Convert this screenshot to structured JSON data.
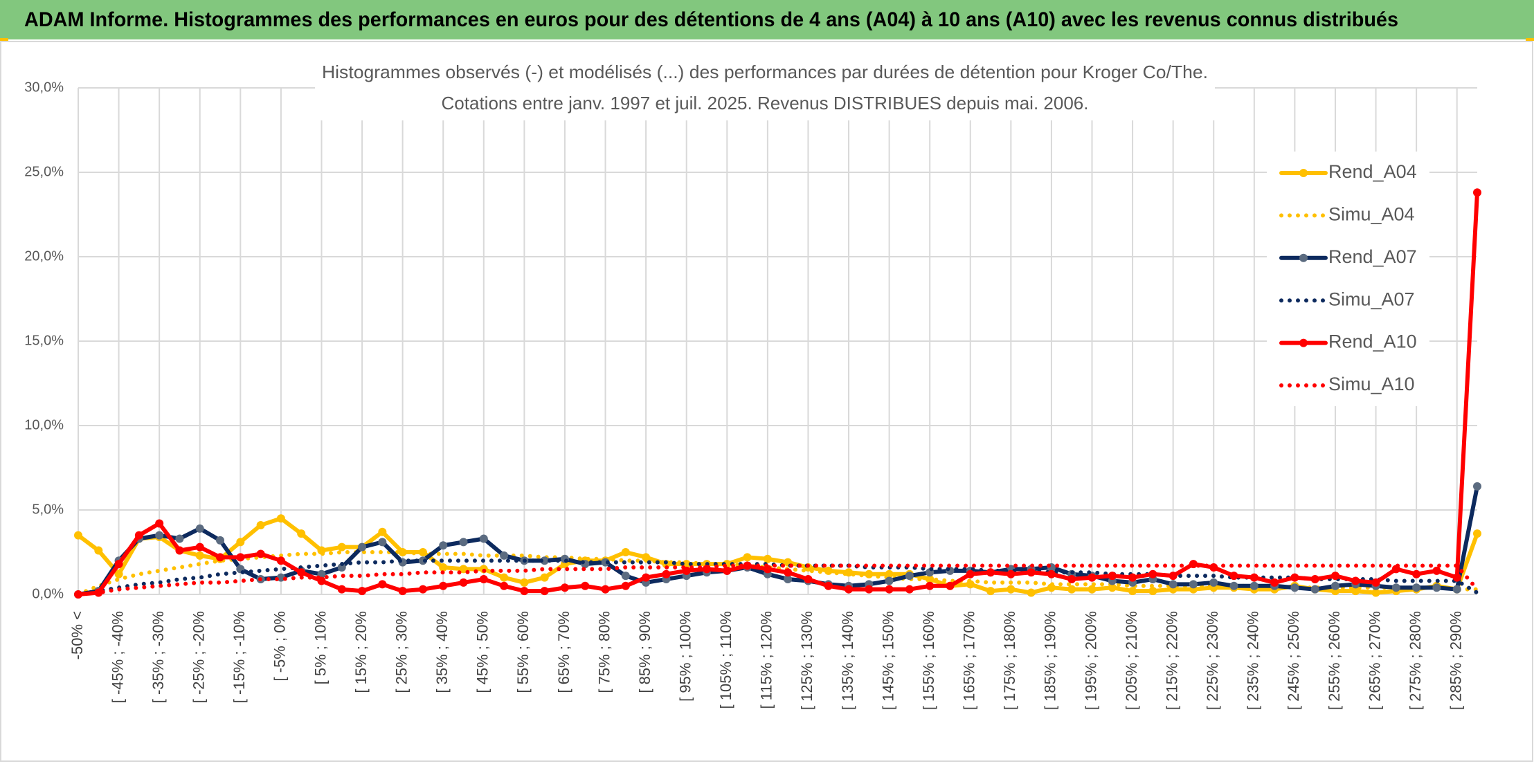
{
  "chart_data": {
    "type": "line",
    "title": "ADAM Informe. Histogrammes des performances en euros pour des détentions de 4 ans (A04) à 10 ans (A10) avec les revenus connus distribués",
    "subtitle": [
      "Histogrammes observés (-) et modélisés (...) des performances par durées de détention pour Kroger Co/The.",
      "Cotations entre janv. 1997 et juil. 2025. Revenus DISTRIBUES depuis mai. 2006."
    ],
    "categories": [
      "-50% <",
      null,
      "[ -45% ; -40%",
      null,
      "[ -35% ; -30%",
      null,
      "[ -25% ; -20%",
      null,
      "[ -15% ; -10%",
      null,
      "[ -5% ; 0%",
      null,
      "[ 5% ; 10%",
      null,
      "[ 15% ; 20%",
      null,
      "[ 25% ; 30%",
      null,
      "[ 35% ; 40%",
      null,
      "[ 45% ; 50%",
      null,
      "[ 55% ; 60%",
      null,
      "[ 65% ; 70%",
      null,
      "[ 75% ; 80%",
      null,
      "[ 85% ; 90%",
      null,
      "[ 95% ; 100%",
      null,
      "[ 105% ; 110%",
      null,
      "[ 115% ; 120%",
      null,
      "[ 125% ; 130%",
      null,
      "[ 135% ; 140%",
      null,
      "[ 145% ; 150%",
      null,
      "[ 155% ; 160%",
      null,
      "[ 165% ; 170%",
      null,
      "[ 175% ; 180%",
      null,
      "[ 185% ; 190%",
      null,
      "[ 195% ; 200%",
      null,
      "[ 205% ; 210%",
      null,
      "[ 215% ; 220%",
      null,
      "[ 225% ; 230%",
      null,
      "[ 235% ; 240%",
      null,
      "[ 245% ; 250%",
      null,
      "[ 255% ; 260%",
      null,
      "[ 265% ; 270%",
      null,
      "[ 275% ; 280%",
      null,
      "[ 285% ; 290%",
      null
    ],
    "series": [
      {
        "name": "Rend_A04",
        "color": "#ffc000",
        "marker_color": "#ffc000",
        "line_style": "solid",
        "markers": true,
        "values": [
          3.5,
          2.6,
          1.2,
          3.3,
          3.4,
          2.6,
          2.3,
          2.1,
          3.1,
          4.1,
          4.5,
          3.6,
          2.6,
          2.8,
          2.8,
          3.7,
          2.5,
          2.5,
          1.6,
          1.5,
          1.5,
          1.0,
          0.7,
          1.0,
          1.8,
          2.0,
          2.0,
          2.5,
          2.2,
          1.8,
          1.8,
          1.8,
          1.8,
          2.2,
          2.1,
          1.9,
          1.6,
          1.4,
          1.3,
          1.2,
          1.2,
          1.2,
          0.9,
          0.5,
          0.6,
          0.2,
          0.3,
          0.1,
          0.4,
          0.3,
          0.3,
          0.4,
          0.2,
          0.2,
          0.3,
          0.3,
          0.4,
          0.4,
          0.3,
          0.3,
          0.5,
          0.3,
          0.2,
          0.2,
          0.1,
          0.2,
          0.3,
          0.5,
          0.3,
          3.6
        ]
      },
      {
        "name": "Simu_A04",
        "color": "#ffc000",
        "line_style": "dotted",
        "markers": false,
        "values": [
          0,
          0.5,
          0.9,
          1.2,
          1.4,
          1.6,
          1.8,
          2.0,
          2.1,
          2.2,
          2.3,
          2.4,
          2.4,
          2.5,
          2.5,
          2.5,
          2.5,
          2.4,
          2.4,
          2.4,
          2.3,
          2.3,
          2.3,
          2.2,
          2.2,
          2.1,
          2.1,
          2.0,
          2.0,
          1.9,
          1.9,
          1.8,
          1.8,
          1.7,
          1.6,
          1.5,
          1.4,
          1.3,
          1.2,
          1.1,
          1.0,
          0.9,
          0.9,
          0.8,
          0.8,
          0.7,
          0.7,
          0.7,
          0.6,
          0.6,
          0.6,
          0.6,
          0.5,
          0.5,
          0.5,
          0.5,
          0.5,
          0.5,
          0.5,
          0.4,
          0.4,
          0.4,
          0.4,
          0.4,
          0.4,
          0.4,
          0.4,
          0.4,
          0.3,
          0.3
        ]
      },
      {
        "name": "Rend_A07",
        "color": "#0d2a5e",
        "marker_color": "#5b6b80",
        "line_style": "solid",
        "markers": true,
        "values": [
          0,
          0.2,
          2.0,
          3.3,
          3.5,
          3.3,
          3.9,
          3.2,
          1.5,
          0.9,
          1.0,
          1.4,
          1.2,
          1.6,
          2.8,
          3.1,
          1.9,
          2.0,
          2.9,
          3.1,
          3.3,
          2.3,
          2.0,
          2.0,
          2.1,
          1.8,
          1.9,
          1.1,
          0.7,
          0.9,
          1.1,
          1.3,
          1.4,
          1.6,
          1.2,
          0.9,
          0.8,
          0.6,
          0.5,
          0.6,
          0.8,
          1.1,
          1.3,
          1.4,
          1.4,
          1.3,
          1.5,
          1.5,
          1.6,
          1.2,
          1.1,
          0.8,
          0.7,
          0.9,
          0.6,
          0.6,
          0.7,
          0.5,
          0.5,
          0.5,
          0.4,
          0.3,
          0.5,
          0.6,
          0.5,
          0.4,
          0.4,
          0.4,
          0.3,
          6.4
        ]
      },
      {
        "name": "Simu_A07",
        "color": "#0d2a5e",
        "line_style": "dotted",
        "markers": false,
        "values": [
          0,
          0.2,
          0.4,
          0.6,
          0.7,
          0.9,
          1.0,
          1.2,
          1.3,
          1.4,
          1.5,
          1.6,
          1.7,
          1.8,
          1.9,
          1.9,
          2.0,
          2.0,
          2.0,
          2.0,
          2.0,
          2.0,
          2.0,
          2.0,
          2.0,
          1.9,
          1.9,
          1.9,
          1.9,
          1.9,
          1.8,
          1.8,
          1.8,
          1.8,
          1.8,
          1.7,
          1.7,
          1.7,
          1.7,
          1.6,
          1.6,
          1.6,
          1.5,
          1.5,
          1.5,
          1.4,
          1.4,
          1.4,
          1.3,
          1.3,
          1.3,
          1.2,
          1.2,
          1.2,
          1.1,
          1.1,
          1.1,
          1.0,
          1.0,
          1.0,
          1.0,
          0.9,
          0.9,
          0.9,
          0.9,
          0.8,
          0.8,
          0.8,
          0.8,
          0.1
        ]
      },
      {
        "name": "Rend_A10",
        "color": "#ff0000",
        "marker_color": "#ff0000",
        "line_style": "solid",
        "markers": true,
        "values": [
          0,
          0.1,
          1.8,
          3.5,
          4.2,
          2.6,
          2.8,
          2.2,
          2.2,
          2.4,
          2.0,
          1.3,
          0.8,
          0.3,
          0.2,
          0.6,
          0.2,
          0.3,
          0.5,
          0.7,
          0.9,
          0.5,
          0.2,
          0.2,
          0.4,
          0.5,
          0.3,
          0.5,
          1.0,
          1.2,
          1.4,
          1.5,
          1.4,
          1.7,
          1.5,
          1.3,
          0.9,
          0.5,
          0.3,
          0.3,
          0.3,
          0.3,
          0.5,
          0.5,
          1.2,
          1.3,
          1.2,
          1.3,
          1.2,
          0.9,
          1.0,
          1.1,
          1.0,
          1.2,
          1.1,
          1.8,
          1.6,
          1.1,
          1.0,
          0.7,
          1.0,
          0.9,
          1.1,
          0.8,
          0.7,
          1.5,
          1.2,
          1.4,
          1.0,
          23.8
        ]
      },
      {
        "name": "Simu_A10",
        "color": "#ff0000",
        "line_style": "dotted",
        "markers": false,
        "values": [
          0,
          0.1,
          0.3,
          0.4,
          0.5,
          0.6,
          0.7,
          0.7,
          0.8,
          0.9,
          0.9,
          1.0,
          1.0,
          1.1,
          1.1,
          1.2,
          1.2,
          1.3,
          1.3,
          1.3,
          1.4,
          1.4,
          1.4,
          1.5,
          1.5,
          1.5,
          1.5,
          1.6,
          1.6,
          1.6,
          1.6,
          1.6,
          1.7,
          1.7,
          1.7,
          1.7,
          1.7,
          1.7,
          1.7,
          1.7,
          1.7,
          1.7,
          1.7,
          1.7,
          1.7,
          1.7,
          1.7,
          1.7,
          1.7,
          1.7,
          1.7,
          1.7,
          1.7,
          1.7,
          1.7,
          1.7,
          1.7,
          1.7,
          1.7,
          1.7,
          1.7,
          1.7,
          1.7,
          1.7,
          1.7,
          1.7,
          1.7,
          1.7,
          1.7,
          0.3
        ]
      }
    ],
    "ylim": [
      0,
      30
    ],
    "yticks": [
      {
        "value": 0,
        "label": "0,0%"
      },
      {
        "value": 5,
        "label": "5,0%"
      },
      {
        "value": 10,
        "label": "10,0%"
      },
      {
        "value": 15,
        "label": "15,0%"
      },
      {
        "value": 20,
        "label": "20,0%"
      },
      {
        "value": 25,
        "label": "25,0%"
      },
      {
        "value": 30,
        "label": "30,0%"
      }
    ],
    "grid": true,
    "legend": "right"
  }
}
